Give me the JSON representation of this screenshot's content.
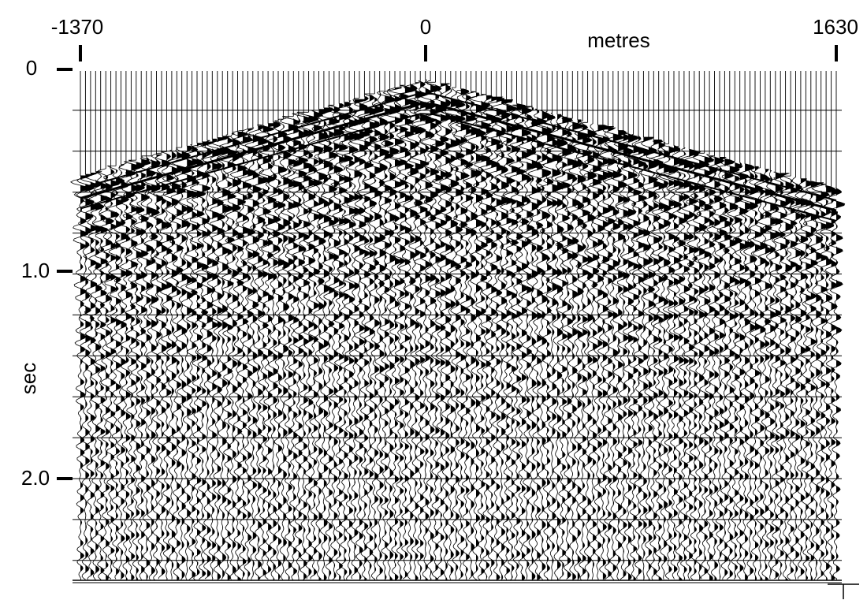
{
  "chart_data": {
    "type": "seismic-wiggle-trace",
    "title": "",
    "xlabel": "metres",
    "ylabel": "sec",
    "x_tick_labels": [
      "-1370",
      "0",
      "1630"
    ],
    "x_ticks": [
      -1370,
      0,
      1630
    ],
    "y_tick_labels": [
      "0",
      "1.0",
      "2.0"
    ],
    "y_ticks": [
      0,
      1.0,
      2.0
    ],
    "xlim": [
      -1370,
      1630
    ],
    "ylim": [
      0,
      2.5
    ],
    "grid": true,
    "horizontal_gridline_interval_sec": 0.2,
    "trace_count": 150,
    "source_offset_m": 0,
    "first_break_time_at_x_sec": [
      {
        "x": -1370,
        "t": 0.52
      },
      {
        "x": 0,
        "t": 0.05
      },
      {
        "x": 1630,
        "t": 0.58
      }
    ],
    "trace_color": "#000000",
    "background_color": "#ffffff"
  }
}
